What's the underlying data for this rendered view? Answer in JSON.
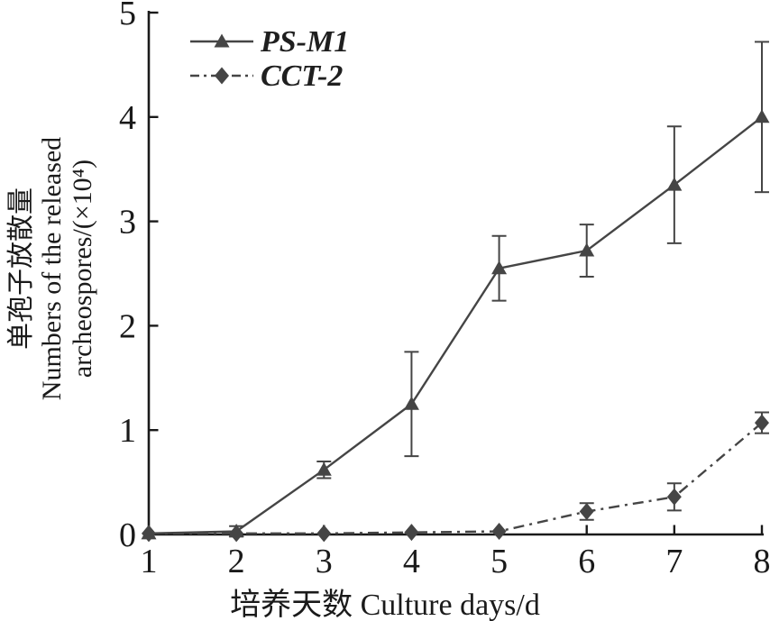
{
  "figure": {
    "background": "#ffffff",
    "axis_color": "#1a1a1a",
    "series_color": "#454545",
    "legend_text_color": "#1f1f1f"
  },
  "chart_data": {
    "type": "line",
    "title": "",
    "xlabel": "培养天数 Culture days/d",
    "ylabel_lines": [
      "单孢子放散量",
      "Numbers of the released",
      "archeospores/(×10⁴)"
    ],
    "x": [
      1,
      2,
      3,
      4,
      5,
      6,
      7,
      8
    ],
    "xticks": [
      1,
      2,
      3,
      4,
      5,
      6,
      7,
      8
    ],
    "yticks": [
      0,
      1,
      2,
      3,
      4,
      5
    ],
    "xlim": [
      1,
      8
    ],
    "ylim": [
      0,
      5
    ],
    "grid": false,
    "legend_position": "top-left-inside",
    "series": [
      {
        "name": "PS-M1",
        "marker": "triangle",
        "line_style": "solid",
        "values": [
          0.01,
          0.03,
          0.62,
          1.25,
          2.55,
          2.72,
          3.35,
          4.0
        ],
        "errors": [
          0,
          0.05,
          0.08,
          0.5,
          0.31,
          0.25,
          0.56,
          0.72
        ]
      },
      {
        "name": "CCT-2",
        "marker": "diamond",
        "line_style": "dash-dot",
        "values": [
          0.01,
          0.01,
          0.01,
          0.02,
          0.03,
          0.22,
          0.36,
          1.07
        ],
        "errors": [
          0,
          0,
          0,
          0,
          0,
          0.08,
          0.13,
          0.1
        ]
      }
    ]
  }
}
